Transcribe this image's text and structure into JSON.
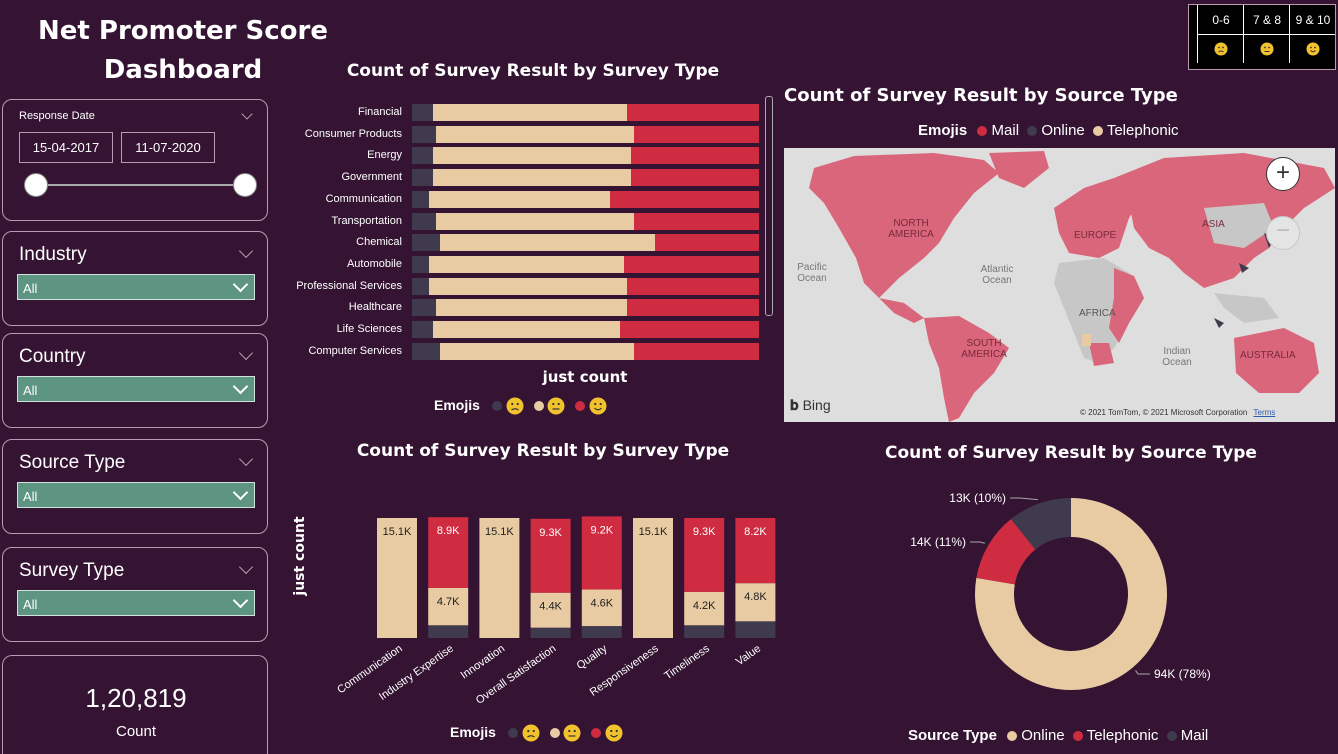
{
  "dashboard": {
    "title_line1": "Net Promoter Score",
    "title_line2": "Dashboard"
  },
  "score_key": {
    "columns": [
      {
        "label": "0-6",
        "emoji": "sad-face-icon"
      },
      {
        "label": "7 & 8",
        "emoji": "neutral-face-icon"
      },
      {
        "label": "9 & 10",
        "emoji": "smile-face-icon"
      }
    ]
  },
  "filters": {
    "response_date": {
      "title": "Response Date",
      "start": "15-04-2017",
      "end": "11-07-2020"
    },
    "industry": {
      "title": "Industry",
      "value": "All"
    },
    "country": {
      "title": "Country",
      "value": "All"
    },
    "source_type": {
      "title": "Source Type",
      "value": "All"
    },
    "survey_type": {
      "title": "Survey Type",
      "value": "All"
    }
  },
  "kpi": {
    "value": "1,20,819",
    "label": "Count"
  },
  "colors": {
    "online": "#3f3a4d",
    "neutral": "#e8cba2",
    "promoter": "#cf2c42",
    "bg": "#341432",
    "map_water": "#dedede",
    "map_land": "#c7c7c7",
    "map_mail": "#d9667a"
  },
  "chart_data": [
    {
      "type": "bar",
      "orientation": "horizontal",
      "stacked": true,
      "title": "Count of Survey Result by Survey Type",
      "xlabel": "just count",
      "legend_title": "Emojis",
      "legend": [
        {
          "color": "#3f3a4d",
          "emoji": "sad-face-icon"
        },
        {
          "color": "#e8cba2",
          "emoji": "neutral-face-icon"
        },
        {
          "color": "#cf2c42",
          "emoji": "smile-face-icon"
        }
      ],
      "categories": [
        "Financial",
        "Consumer Products",
        "Energy",
        "Government",
        "Communication",
        "Transportation",
        "Chemical",
        "Automobile",
        "Professional Services",
        "Healthcare",
        "Life Sciences",
        "Computer Services"
      ],
      "series": [
        {
          "values": [
            6,
            7,
            6,
            6,
            5,
            7,
            8,
            5,
            5,
            7,
            6,
            8
          ]
        },
        {
          "values": [
            56,
            57,
            57,
            57,
            52,
            57,
            62,
            56,
            57,
            55,
            54,
            56
          ]
        },
        {
          "values": [
            38,
            36,
            37,
            37,
            43,
            36,
            30,
            39,
            38,
            38,
            40,
            36
          ]
        }
      ]
    },
    {
      "type": "bar",
      "orientation": "vertical",
      "stacked": true,
      "title": "Count of Survey Result by Survey Type",
      "ylabel": "just count",
      "legend_title": "Emojis",
      "legend": [
        {
          "color": "#3f3a4d",
          "emoji": "sad-face-icon"
        },
        {
          "color": "#e8cba2",
          "emoji": "neutral-face-icon"
        },
        {
          "color": "#cf2c42",
          "emoji": "smile-face-icon"
        }
      ],
      "categories": [
        "Communication",
        "Industry Expertise",
        "Innovation",
        "Overall Satisfaction",
        "Quality",
        "Responsiveness",
        "Timeliness",
        "Value"
      ],
      "series": [
        {
          "values": [
            0,
            1.6,
            0,
            1.3,
            1.5,
            0,
            1.6,
            2.1
          ]
        },
        {
          "values": [
            15.1,
            4.7,
            15.1,
            4.4,
            4.6,
            15.1,
            4.2,
            4.8
          ],
          "labels": [
            "15.1K",
            "4.7K",
            "15.1K",
            "4.4K",
            "4.6K",
            "15.1K",
            "4.2K",
            "4.8K"
          ]
        },
        {
          "values": [
            0,
            8.9,
            0,
            9.3,
            9.2,
            0,
            9.3,
            8.2
          ],
          "labels": [
            "",
            "8.9K",
            "",
            "9.3K",
            "9.2K",
            "",
            "9.3K",
            "8.2K"
          ]
        }
      ]
    },
    {
      "type": "pie",
      "donut": true,
      "title": "Count of Survey Result by Source Type",
      "legend_title": "Source Type",
      "slices": [
        {
          "name": "Online",
          "value": 94,
          "label": "94K (78%)",
          "color": "#e8cba2"
        },
        {
          "name": "Telephonic",
          "value": 14,
          "label": "14K (11%)",
          "color": "#cf2c42"
        },
        {
          "name": "Mail",
          "value": 13,
          "label": "13K (10%)",
          "color": "#3f3a4d"
        }
      ]
    }
  ],
  "map": {
    "title": "Count of Survey Result by Source Type",
    "legend_title": "Emojis",
    "legend": [
      {
        "name": "Mail",
        "color": "#cf2c42"
      },
      {
        "name": "Online",
        "color": "#3f3a4d"
      },
      {
        "name": "Telephonic",
        "color": "#e8cba2"
      }
    ],
    "labels": {
      "na": "NORTH AMERICA",
      "sa": "SOUTH AMERICA",
      "eu": "EUROPE",
      "af": "AFRICA",
      "as": "ASIA",
      "au": "AUSTRALIA",
      "pac": "Pacific Ocean",
      "atl": "Atlantic Ocean",
      "ind": "Indian Ocean"
    },
    "brand": "Bing",
    "copyright": "© 2021 TomTom, © 2021 Microsoft Corporation",
    "terms": "Terms"
  }
}
